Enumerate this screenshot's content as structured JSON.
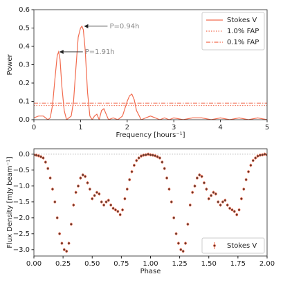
{
  "chart_data": [
    {
      "type": "line",
      "xlabel": "Frequency [hours⁻¹]",
      "ylabel": "Power",
      "xlim": [
        0,
        5
      ],
      "ylim": [
        0,
        0.6
      ],
      "xticks": [
        0,
        1,
        2,
        3,
        4,
        5
      ],
      "yticks": [
        {
          "value": 0,
          "label": "0.0"
        },
        0.1,
        0.2,
        0.3,
        0.4,
        0.5,
        0.6
      ],
      "legend": "upper right",
      "series": [
        {
          "name": "Stokes V",
          "color": "#f26b4e",
          "x": [
            0,
            0.1,
            0.2,
            0.3,
            0.35,
            0.4,
            0.45,
            0.5,
            0.53,
            0.56,
            0.6,
            0.65,
            0.7,
            0.75,
            0.8,
            0.85,
            0.9,
            0.95,
            1.0,
            1.03,
            1.06,
            1.1,
            1.15,
            1.2,
            1.25,
            1.3,
            1.35,
            1.4,
            1.45,
            1.5,
            1.55,
            1.6,
            1.7,
            1.8,
            1.9,
            2.0,
            2.05,
            2.1,
            2.15,
            2.2,
            2.3,
            2.4,
            2.5,
            2.6,
            2.7,
            2.8,
            2.9,
            3.0,
            3.2,
            3.4,
            3.6,
            3.8,
            4.0,
            4.2,
            4.4,
            4.6,
            4.8,
            5.0
          ],
          "values": [
            0.01,
            0.02,
            0.02,
            0.0,
            0.01,
            0.08,
            0.22,
            0.35,
            0.37,
            0.33,
            0.18,
            0.05,
            0.0,
            0.01,
            0.02,
            0.1,
            0.28,
            0.45,
            0.5,
            0.51,
            0.49,
            0.38,
            0.15,
            0.02,
            0.0,
            0.02,
            0.03,
            0.0,
            0.05,
            0.06,
            0.03,
            0.0,
            0.01,
            0.0,
            0.02,
            0.1,
            0.13,
            0.14,
            0.11,
            0.05,
            0.0,
            0.01,
            0.02,
            0.01,
            0.0,
            0.01,
            0.0,
            0.01,
            0.0,
            0.01,
            0.01,
            0.0,
            0.01,
            0.0,
            0.01,
            0.0,
            0.01,
            0.0
          ]
        }
      ],
      "fap_lines": [
        {
          "name": "1.0% FAP",
          "value": 0.077,
          "style": "dotted",
          "color": "#f26b4e"
        },
        {
          "name": "0.1% FAP",
          "value": 0.09,
          "style": "dashdot",
          "color": "#f26b4e"
        }
      ],
      "annotations": [
        {
          "text": "P=0.94h",
          "xy": [
            1.06,
            0.51
          ]
        },
        {
          "text": "P=1.91h",
          "xy": [
            0.53,
            0.37
          ]
        }
      ]
    },
    {
      "type": "scatter",
      "xlabel": "Phase",
      "ylabel": "Flux Density [mJy beam⁻¹]",
      "xlim": [
        0,
        2
      ],
      "ylim": [
        -3.2,
        0.17
      ],
      "xticks": [
        {
          "value": 0,
          "label": "0.00"
        },
        {
          "value": 0.25,
          "label": "0.25"
        },
        {
          "value": 0.5,
          "label": "0.50"
        },
        {
          "value": 0.75,
          "label": "0.75"
        },
        {
          "value": 1,
          "label": "1.00"
        },
        {
          "value": 1.25,
          "label": "1.25"
        },
        {
          "value": 1.5,
          "label": "1.50"
        },
        {
          "value": 1.75,
          "label": "1.75"
        },
        {
          "value": 2,
          "label": "2.00"
        }
      ],
      "yticks": [
        {
          "value": 0,
          "label": "0.0"
        },
        {
          "value": -0.5,
          "label": "−0.5"
        },
        {
          "value": -1,
          "label": "−1.0"
        },
        {
          "value": -1.5,
          "label": "−1.5"
        },
        {
          "value": -2,
          "label": "−2.0"
        },
        {
          "value": -2.5,
          "label": "−2.5"
        },
        {
          "value": -3,
          "label": "−3.0"
        }
      ],
      "hline": 0,
      "legend": "lower right",
      "yerr": 0.05,
      "series": [
        {
          "name": "Stokes V",
          "color": "#f26b4e",
          "x": [
            0,
            0.02,
            0.04,
            0.06,
            0.08,
            0.1,
            0.12,
            0.14,
            0.16,
            0.18,
            0.2,
            0.22,
            0.24,
            0.26,
            0.28,
            0.3,
            0.32,
            0.34,
            0.36,
            0.38,
            0.4,
            0.42,
            0.44,
            0.46,
            0.48,
            0.5,
            0.52,
            0.54,
            0.56,
            0.58,
            0.6,
            0.62,
            0.64,
            0.66,
            0.68,
            0.7,
            0.72,
            0.74,
            0.76,
            0.78,
            0.8,
            0.82,
            0.84,
            0.86,
            0.88,
            0.9,
            0.92,
            0.94,
            0.96,
            0.98,
            1.0,
            1.02,
            1.04,
            1.06,
            1.08,
            1.1,
            1.12,
            1.14,
            1.16,
            1.18,
            1.2,
            1.22,
            1.24,
            1.26,
            1.28,
            1.3,
            1.32,
            1.34,
            1.36,
            1.38,
            1.4,
            1.42,
            1.44,
            1.46,
            1.48,
            1.5,
            1.52,
            1.54,
            1.56,
            1.58,
            1.6,
            1.62,
            1.64,
            1.66,
            1.68,
            1.7,
            1.72,
            1.74,
            1.76,
            1.78,
            1.8,
            1.82,
            1.84,
            1.86,
            1.88,
            1.9,
            1.92,
            1.94,
            1.96,
            1.98,
            2.0
          ],
          "values": [
            -0.02,
            -0.03,
            -0.05,
            -0.08,
            -0.12,
            -0.25,
            -0.45,
            -0.75,
            -1.1,
            -1.5,
            -2.0,
            -2.5,
            -2.8,
            -3.0,
            -3.05,
            -2.8,
            -2.2,
            -1.6,
            -1.2,
            -1.0,
            -0.75,
            -0.65,
            -0.7,
            -0.9,
            -1.1,
            -1.4,
            -1.3,
            -1.2,
            -1.25,
            -1.5,
            -1.6,
            -1.5,
            -1.45,
            -1.6,
            -1.7,
            -1.75,
            -1.8,
            -1.9,
            -1.75,
            -1.4,
            -1.1,
            -0.8,
            -0.55,
            -0.35,
            -0.2,
            -0.12,
            -0.06,
            -0.03,
            -0.02,
            0.0,
            -0.02,
            -0.03,
            -0.05,
            -0.08,
            -0.12,
            -0.25,
            -0.45,
            -0.75,
            -1.1,
            -1.5,
            -2.0,
            -2.5,
            -2.8,
            -3.0,
            -3.05,
            -2.8,
            -2.2,
            -1.6,
            -1.2,
            -1.0,
            -0.75,
            -0.65,
            -0.7,
            -0.9,
            -1.1,
            -1.4,
            -1.3,
            -1.2,
            -1.25,
            -1.5,
            -1.6,
            -1.5,
            -1.45,
            -1.6,
            -1.7,
            -1.75,
            -1.8,
            -1.9,
            -1.75,
            -1.4,
            -1.1,
            -0.8,
            -0.55,
            -0.35,
            -0.2,
            -0.12,
            -0.06,
            -0.03,
            -0.02,
            0.0,
            -0.02
          ]
        }
      ]
    }
  ]
}
